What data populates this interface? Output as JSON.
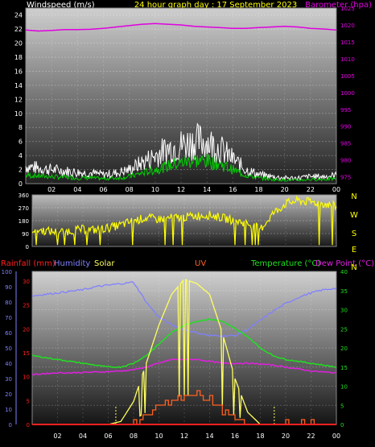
{
  "header": {
    "left_label": "Windspeed (m/s)",
    "title": "24 hour graph day : 17 September 2023",
    "right_label": "Barometer (hpa)"
  },
  "bottom_header": {
    "rainfall": "Rainfall (mm)",
    "humidity": "Humidity",
    "solar": "Solar",
    "uv": "UV",
    "temperature": "Temperature (°C)",
    "dewpoint": "Dew Point (°C)"
  },
  "colors": {
    "wind_gust": "#ffffff",
    "wind_avg": "#00d000",
    "wind_direction": "#ffff00",
    "barometer": "#e000e0",
    "humidity": "#8080ff",
    "solar": "#ffff60",
    "uv": "#ff6020",
    "temperature": "#20e020",
    "dewpoint": "#e020e0",
    "rainfall": "#ff2020"
  },
  "chart_data": [
    {
      "type": "line",
      "name": "wind_and_barometer",
      "x_ticks": [
        "02",
        "04",
        "06",
        "08",
        "10",
        "12",
        "14",
        "16",
        "18",
        "20",
        "22",
        "00"
      ],
      "y_left_ticks": [
        "0",
        "2",
        "4",
        "6",
        "8",
        "10",
        "12",
        "14",
        "16",
        "18",
        "20",
        "22",
        "24"
      ],
      "y_left_range": [
        0,
        25
      ],
      "y_right_ticks": [
        "975",
        "980",
        "985",
        "990",
        "995",
        "1000",
        "1005",
        "1010",
        "1015",
        "1020",
        "1025"
      ],
      "y_right_range": [
        973,
        1025
      ],
      "hours": [
        0,
        1,
        2,
        3,
        4,
        5,
        6,
        7,
        8,
        9,
        10,
        11,
        12,
        13,
        14,
        15,
        16,
        17,
        18,
        19,
        20,
        21,
        22,
        23,
        24
      ],
      "series": [
        {
          "key": "gust",
          "values": [
            2.5,
            2.2,
            2.0,
            1.8,
            1.6,
            1.5,
            1.3,
            1.5,
            2.0,
            3.0,
            4.0,
            5.0,
            5.5,
            6.0,
            6.0,
            5.0,
            3.5,
            2.0,
            1.3,
            1.0,
            0.8,
            0.8,
            1.0,
            1.0,
            1.2
          ]
        },
        {
          "key": "average",
          "values": [
            1.2,
            1.1,
            1.0,
            0.9,
            0.8,
            0.8,
            0.7,
            0.8,
            1.0,
            1.5,
            2.0,
            2.5,
            3.0,
            3.3,
            3.2,
            2.8,
            2.0,
            1.2,
            0.8,
            0.6,
            0.5,
            0.5,
            0.6,
            0.6,
            0.7
          ]
        },
        {
          "key": "barometer",
          "values": [
            1018.5,
            1018.2,
            1018.4,
            1018.6,
            1018.6,
            1018.7,
            1019.0,
            1019.4,
            1019.8,
            1020.2,
            1020.4,
            1020.2,
            1020.0,
            1019.6,
            1019.4,
            1019.2,
            1019.0,
            1019.0,
            1019.2,
            1019.4,
            1019.6,
            1019.4,
            1019.0,
            1018.8,
            1018.5
          ]
        }
      ]
    },
    {
      "type": "line",
      "name": "wind_direction",
      "x_ticks": [
        "02",
        "04",
        "06",
        "08",
        "10",
        "12",
        "14",
        "16",
        "18",
        "20",
        "22",
        "00"
      ],
      "y_ticks": [
        "0",
        "90",
        "180",
        "270",
        "360"
      ],
      "y_range": [
        0,
        360
      ],
      "compass": [
        "N",
        "W",
        "S",
        "E",
        "N"
      ],
      "hours": [
        0,
        1,
        2,
        3,
        4,
        5,
        6,
        7,
        8,
        9,
        10,
        11,
        12,
        13,
        14,
        15,
        16,
        17,
        18,
        19,
        20,
        21,
        22,
        23,
        24
      ],
      "values": [
        120,
        110,
        100,
        110,
        120,
        115,
        130,
        150,
        180,
        200,
        190,
        200,
        205,
        215,
        220,
        200,
        180,
        160,
        120,
        230,
        300,
        320,
        310,
        300,
        280
      ]
    },
    {
      "type": "line",
      "name": "temperature_humidity_solar",
      "x_ticks": [
        "02",
        "04",
        "06",
        "08",
        "10",
        "12",
        "14",
        "16",
        "18",
        "20",
        "22",
        "00"
      ],
      "y_humidity_ticks": [
        "0",
        "10",
        "20",
        "30",
        "40",
        "50",
        "60",
        "70",
        "80",
        "90",
        "100"
      ],
      "y_humidity_range": [
        0,
        100
      ],
      "y_rain_ticks": [
        "0",
        "5",
        "10",
        "15",
        "20",
        "25",
        "30"
      ],
      "y_temp_ticks": [
        "0",
        "5",
        "10",
        "15",
        "20",
        "25",
        "30",
        "35",
        "40"
      ],
      "y_temp_range": [
        0,
        40
      ],
      "hours": [
        0,
        1,
        2,
        3,
        4,
        5,
        6,
        7,
        8,
        9,
        10,
        11,
        12,
        13,
        14,
        15,
        16,
        17,
        18,
        19,
        20,
        21,
        22,
        23,
        24
      ],
      "series": [
        {
          "key": "humidity",
          "values": [
            84,
            85,
            86,
            87,
            88,
            90,
            91,
            92,
            93,
            80,
            70,
            65,
            62,
            60,
            58,
            58,
            58,
            62,
            68,
            74,
            79,
            83,
            86,
            88,
            89
          ]
        },
        {
          "key": "temperature",
          "values": [
            18,
            17.5,
            17,
            16.5,
            16,
            15.5,
            15,
            15,
            16,
            18,
            21,
            24,
            26,
            27,
            27.5,
            27,
            25,
            23,
            20,
            18,
            17,
            16.5,
            16,
            15.5,
            15
          ]
        },
        {
          "key": "dewpoint",
          "values": [
            13,
            13.3,
            13.5,
            13.5,
            13.6,
            13.7,
            13.8,
            14,
            14.3,
            15,
            16,
            17,
            17,
            17,
            16.5,
            16,
            16,
            16,
            15.8,
            15.5,
            15,
            14.5,
            14,
            13.7,
            13.5
          ]
        },
        {
          "key": "solar",
          "values": [
            0,
            0,
            0,
            0,
            0,
            0,
            0,
            2,
            15,
            40,
            65,
            85,
            95,
            92,
            85,
            60,
            30,
            8,
            0,
            0,
            0,
            0,
            0,
            0,
            0
          ]
        },
        {
          "key": "uv",
          "values": [
            0,
            0,
            0,
            0,
            0,
            0,
            0,
            0,
            0.5,
            2,
            4,
            5,
            6,
            6,
            5,
            3,
            1,
            0,
            0,
            0,
            0,
            0,
            0,
            0,
            0
          ]
        },
        {
          "key": "rainfall",
          "values": [
            0,
            0,
            0,
            0,
            0,
            0,
            0,
            0,
            0,
            0,
            0,
            0,
            0,
            0,
            0,
            0,
            0,
            0,
            0,
            0,
            0,
            0,
            0,
            0,
            0
          ]
        }
      ]
    }
  ]
}
